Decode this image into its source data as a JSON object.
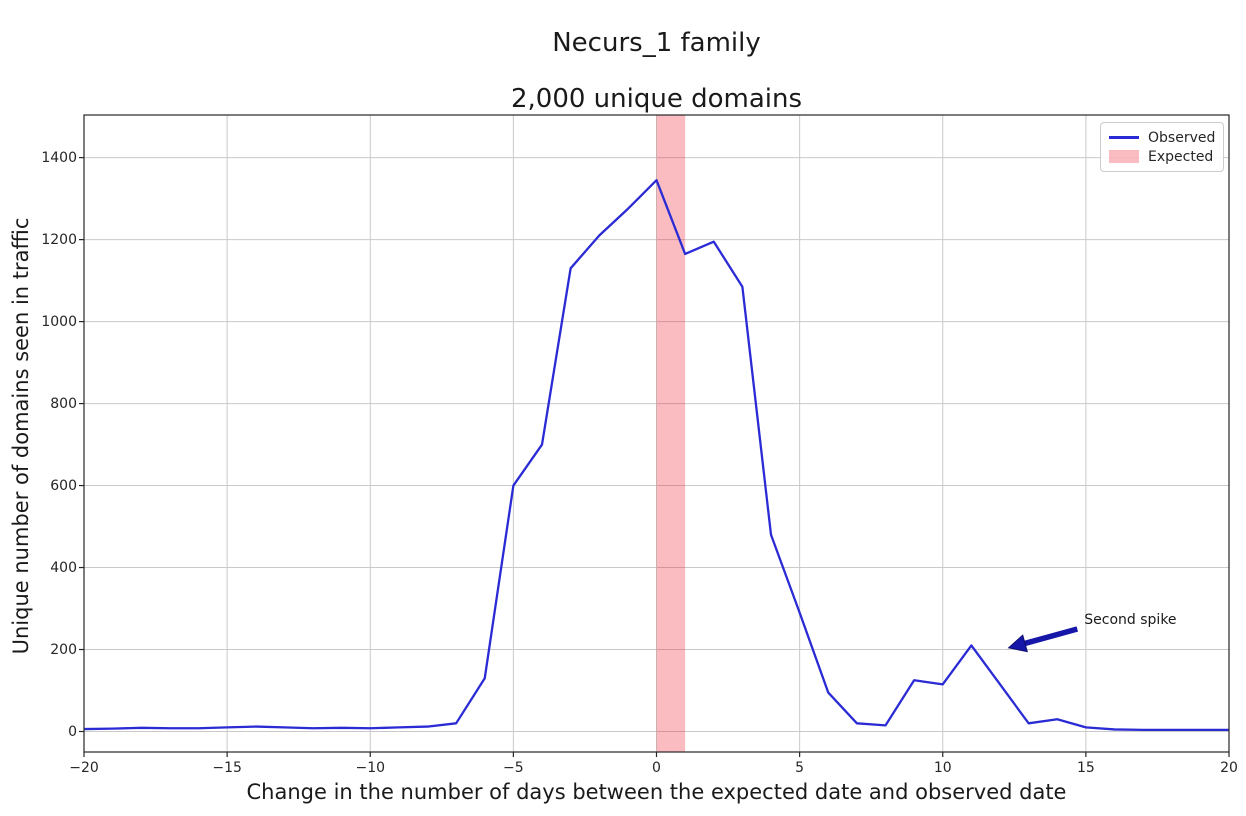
{
  "figure": {
    "suptitle": "Necurs_1 family",
    "title": "2,000 unique domains"
  },
  "legend": {
    "position": "upper right",
    "items": [
      {
        "label": "Observed",
        "swatch": "line",
        "color": "#2b2bd5"
      },
      {
        "label": "Expected",
        "swatch": "patch",
        "color": "rgba(240,30,50,0.3)"
      }
    ]
  },
  "chart_data": {
    "type": "line",
    "suptitle": "Necurs_1 family",
    "title": "2,000 unique domains",
    "xlabel": "Change in the number of days between the expected date and observed date",
    "ylabel": "Unique number of domains seen in traffic",
    "x": [
      -20,
      -19,
      -18,
      -17,
      -16,
      -15,
      -14,
      -13,
      -12,
      -11,
      -10,
      -9,
      -8,
      -7,
      -6,
      -5,
      -4,
      -3,
      -2,
      -1,
      0,
      1,
      2,
      3,
      4,
      5,
      6,
      7,
      8,
      9,
      10,
      11,
      12,
      13,
      14,
      15,
      16,
      17,
      18,
      19,
      20
    ],
    "series": [
      {
        "name": "Observed",
        "color": "#2b2bd5",
        "values": [
          6,
          7,
          9,
          8,
          8,
          10,
          12,
          10,
          8,
          9,
          8,
          10,
          12,
          20,
          130,
          600,
          700,
          1130,
          1210,
          1275,
          1345,
          1165,
          1195,
          1085,
          480,
          290,
          95,
          20,
          15,
          125,
          115,
          210,
          115,
          20,
          30,
          10,
          5,
          4,
          4,
          4,
          4
        ]
      }
    ],
    "expected_band": {
      "label": "Expected",
      "x_start": 0,
      "x_end": 1,
      "color": "rgba(240,30,50,0.3)"
    },
    "annotation": {
      "text": "Second spike",
      "xy": [
        12.3,
        204
      ],
      "xytext": [
        14.7,
        250
      ],
      "arrow_color": "#1616a8"
    },
    "xlim": [
      -20,
      20
    ],
    "ylim": [
      -50,
      1504
    ],
    "xticks": [
      -20,
      -15,
      -10,
      -5,
      0,
      5,
      10,
      15,
      20
    ],
    "yticks": [
      0,
      200,
      400,
      600,
      800,
      1000,
      1200,
      1400
    ],
    "grid": true,
    "grid_color": "#c9c9c9",
    "spine_color": "#262626",
    "legend_position": "upper right"
  }
}
